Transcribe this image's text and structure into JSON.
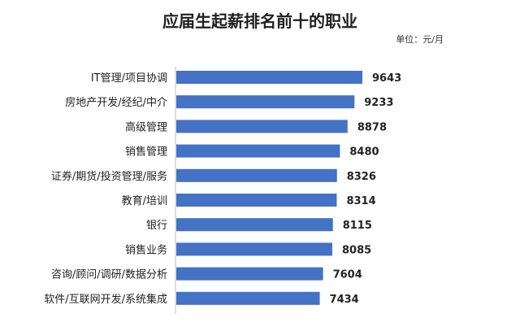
{
  "chart_data": {
    "type": "bar",
    "orientation": "horizontal",
    "title": "应届生起薪排名前十的职业",
    "unit_label": "单位：元/月",
    "categories": [
      "IT管理/项目协调",
      "房地产开发/经纪/中介",
      "高级管理",
      "销售管理",
      "证券/期货/投资管理/服务",
      "教育/培训",
      "银行",
      "销售业务",
      "咨询/顾问/调研/数据分析",
      "软件/互联网开发/系统集成"
    ],
    "values": [
      9643,
      9233,
      8878,
      8480,
      8326,
      8314,
      8115,
      8085,
      7604,
      7434
    ],
    "bar_color": "#4472C4",
    "axis_line_color": "#BFBFBF",
    "grid": false,
    "legend": "none"
  }
}
